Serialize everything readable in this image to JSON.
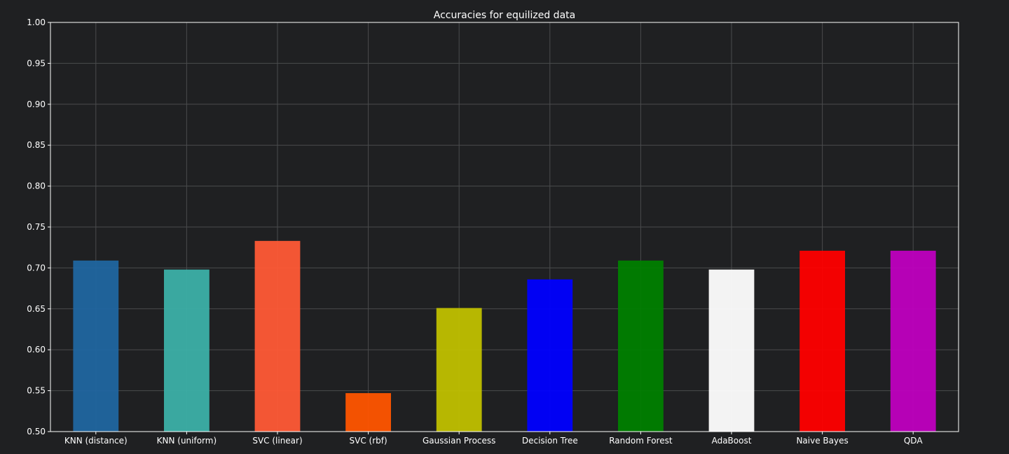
{
  "chart_data": {
    "type": "bar",
    "title": "Accuracies for equilized data",
    "xlabel": "",
    "ylabel": "",
    "ylim": [
      0.5,
      1.0
    ],
    "yticks": [
      0.5,
      0.55,
      0.6,
      0.65,
      0.7,
      0.75,
      0.8,
      0.85,
      0.9,
      0.95,
      1.0
    ],
    "grid": true,
    "categories": [
      "KNN (distance)",
      "KNN (uniform)",
      "SVC (linear)",
      "SVC (rbf)",
      "Gaussian Process",
      "Decision Tree",
      "Random Forest",
      "AdaBoost",
      "Naive Bayes",
      "QDA"
    ],
    "values": [
      0.709,
      0.698,
      0.733,
      0.547,
      0.651,
      0.686,
      0.709,
      0.698,
      0.721,
      0.721
    ],
    "colors": [
      "#2066a0",
      "#3cb0a8",
      "#ff5a36",
      "#ff5500",
      "#c0c000",
      "#0000ff",
      "#008000",
      "#ffffff",
      "#ff0000",
      "#bf00bf"
    ]
  },
  "theme": {
    "background": "#1f2022",
    "axis": "#ffffff",
    "grid": "#4a4b4d",
    "text": "#ffffff"
  }
}
